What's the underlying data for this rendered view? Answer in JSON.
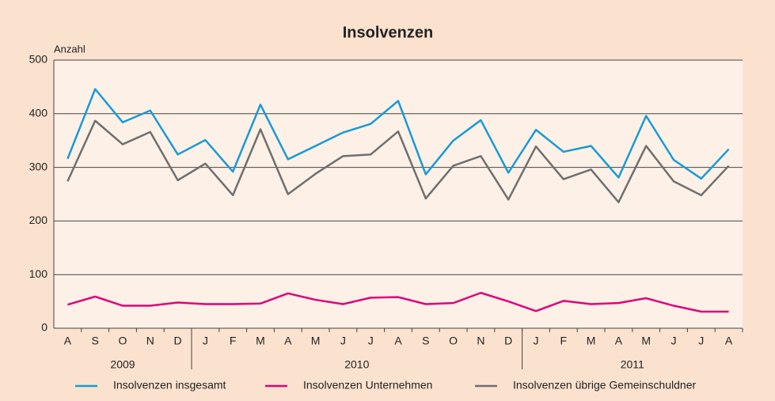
{
  "chart_data": {
    "type": "line",
    "title": "Insolvenzen",
    "y_label": "Anzahl",
    "categories": [
      "A",
      "S",
      "O",
      "N",
      "D",
      "J",
      "F",
      "M",
      "A",
      "M",
      "J",
      "J",
      "A",
      "S",
      "O",
      "N",
      "D",
      "J",
      "F",
      "M",
      "A",
      "M",
      "J",
      "J",
      "A"
    ],
    "groups": [
      {
        "label": "2009",
        "count": 5
      },
      {
        "label": "2010",
        "count": 12
      },
      {
        "label": "2011",
        "count": 8
      }
    ],
    "series": [
      {
        "name": "Insolvenzen insgesamt",
        "color": "#1a9ad6",
        "values": [
          316,
          446,
          384,
          406,
          324,
          351,
          292,
          417,
          315,
          340,
          365,
          381,
          424,
          287,
          350,
          388,
          290,
          370,
          329,
          340,
          281,
          396,
          314,
          279,
          334
        ]
      },
      {
        "name": "Insolvenzen Unternehmen",
        "color": "#e2007a",
        "values": [
          44,
          59,
          42,
          42,
          48,
          45,
          45,
          46,
          65,
          53,
          45,
          57,
          58,
          45,
          47,
          66,
          50,
          32,
          51,
          45,
          47,
          56,
          42,
          31,
          31
        ]
      },
      {
        "name": "Insolvenzen übrige Gemeinschuldner",
        "color": "#6f6f6f",
        "values": [
          274,
          387,
          343,
          366,
          276,
          307,
          248,
          371,
          250,
          288,
          321,
          324,
          367,
          242,
          303,
          321,
          240,
          339,
          278,
          296,
          235,
          340,
          274,
          248,
          303
        ]
      }
    ],
    "ylim": [
      0,
      500
    ],
    "yticks": [
      0,
      100,
      200,
      300,
      400,
      500
    ],
    "grid": true
  }
}
